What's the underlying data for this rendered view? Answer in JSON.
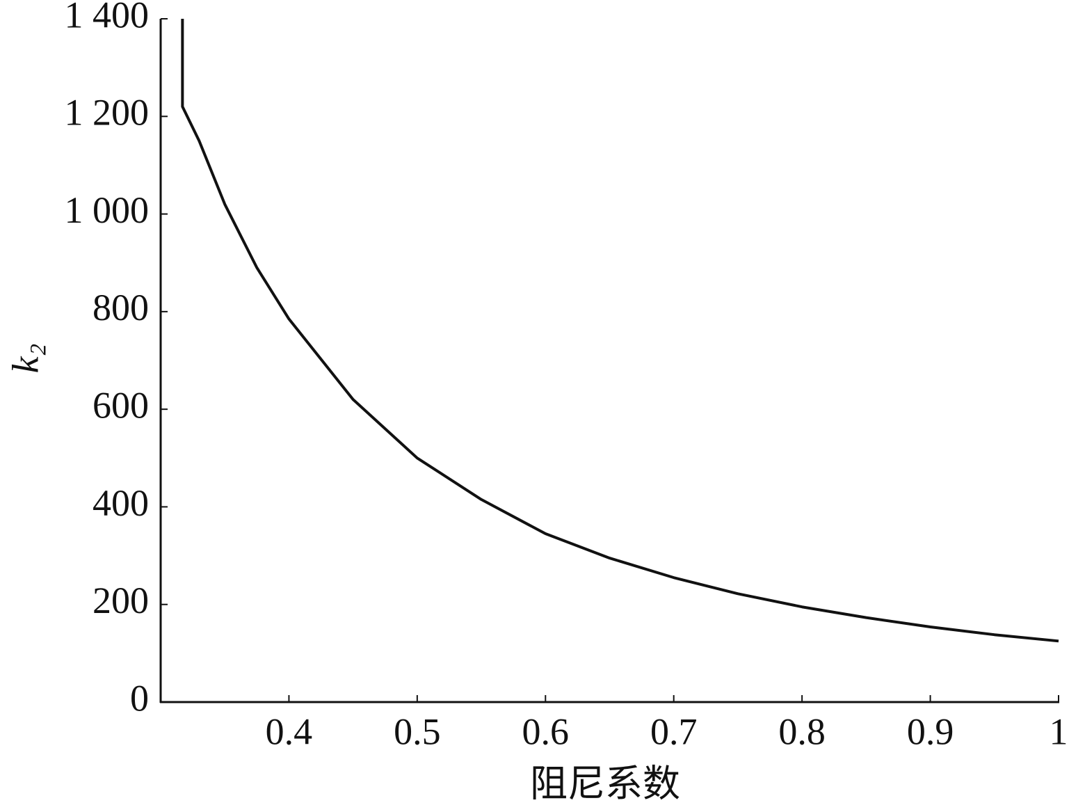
{
  "chart_data": {
    "type": "line",
    "xlabel": "阻尼系数",
    "ylabel": "k₂",
    "x": [
      0.317,
      0.317,
      0.33,
      0.35,
      0.375,
      0.4,
      0.45,
      0.5,
      0.55,
      0.6,
      0.65,
      0.7,
      0.75,
      0.8,
      0.85,
      0.9,
      0.95,
      1.0
    ],
    "series": [
      {
        "name": "k₂",
        "color": "#111111",
        "values": [
          1400,
          1220,
          1150,
          1020,
          890,
          785,
          620,
          500,
          415,
          345,
          295,
          255,
          222,
          195,
          173,
          154,
          138,
          125
        ]
      }
    ],
    "xlim": [
      0.3,
      1
    ],
    "ylim": [
      0,
      1400
    ],
    "xticks": [
      0.4,
      0.5,
      0.6,
      0.7,
      0.8,
      0.9,
      1
    ],
    "yticks": [
      0,
      200,
      400,
      600,
      800,
      {
        "value": 1000,
        "label": "1 000"
      },
      {
        "value": 1200,
        "label": "1 200"
      },
      {
        "value": 1400,
        "label": "1 400"
      }
    ],
    "grid": false
  }
}
